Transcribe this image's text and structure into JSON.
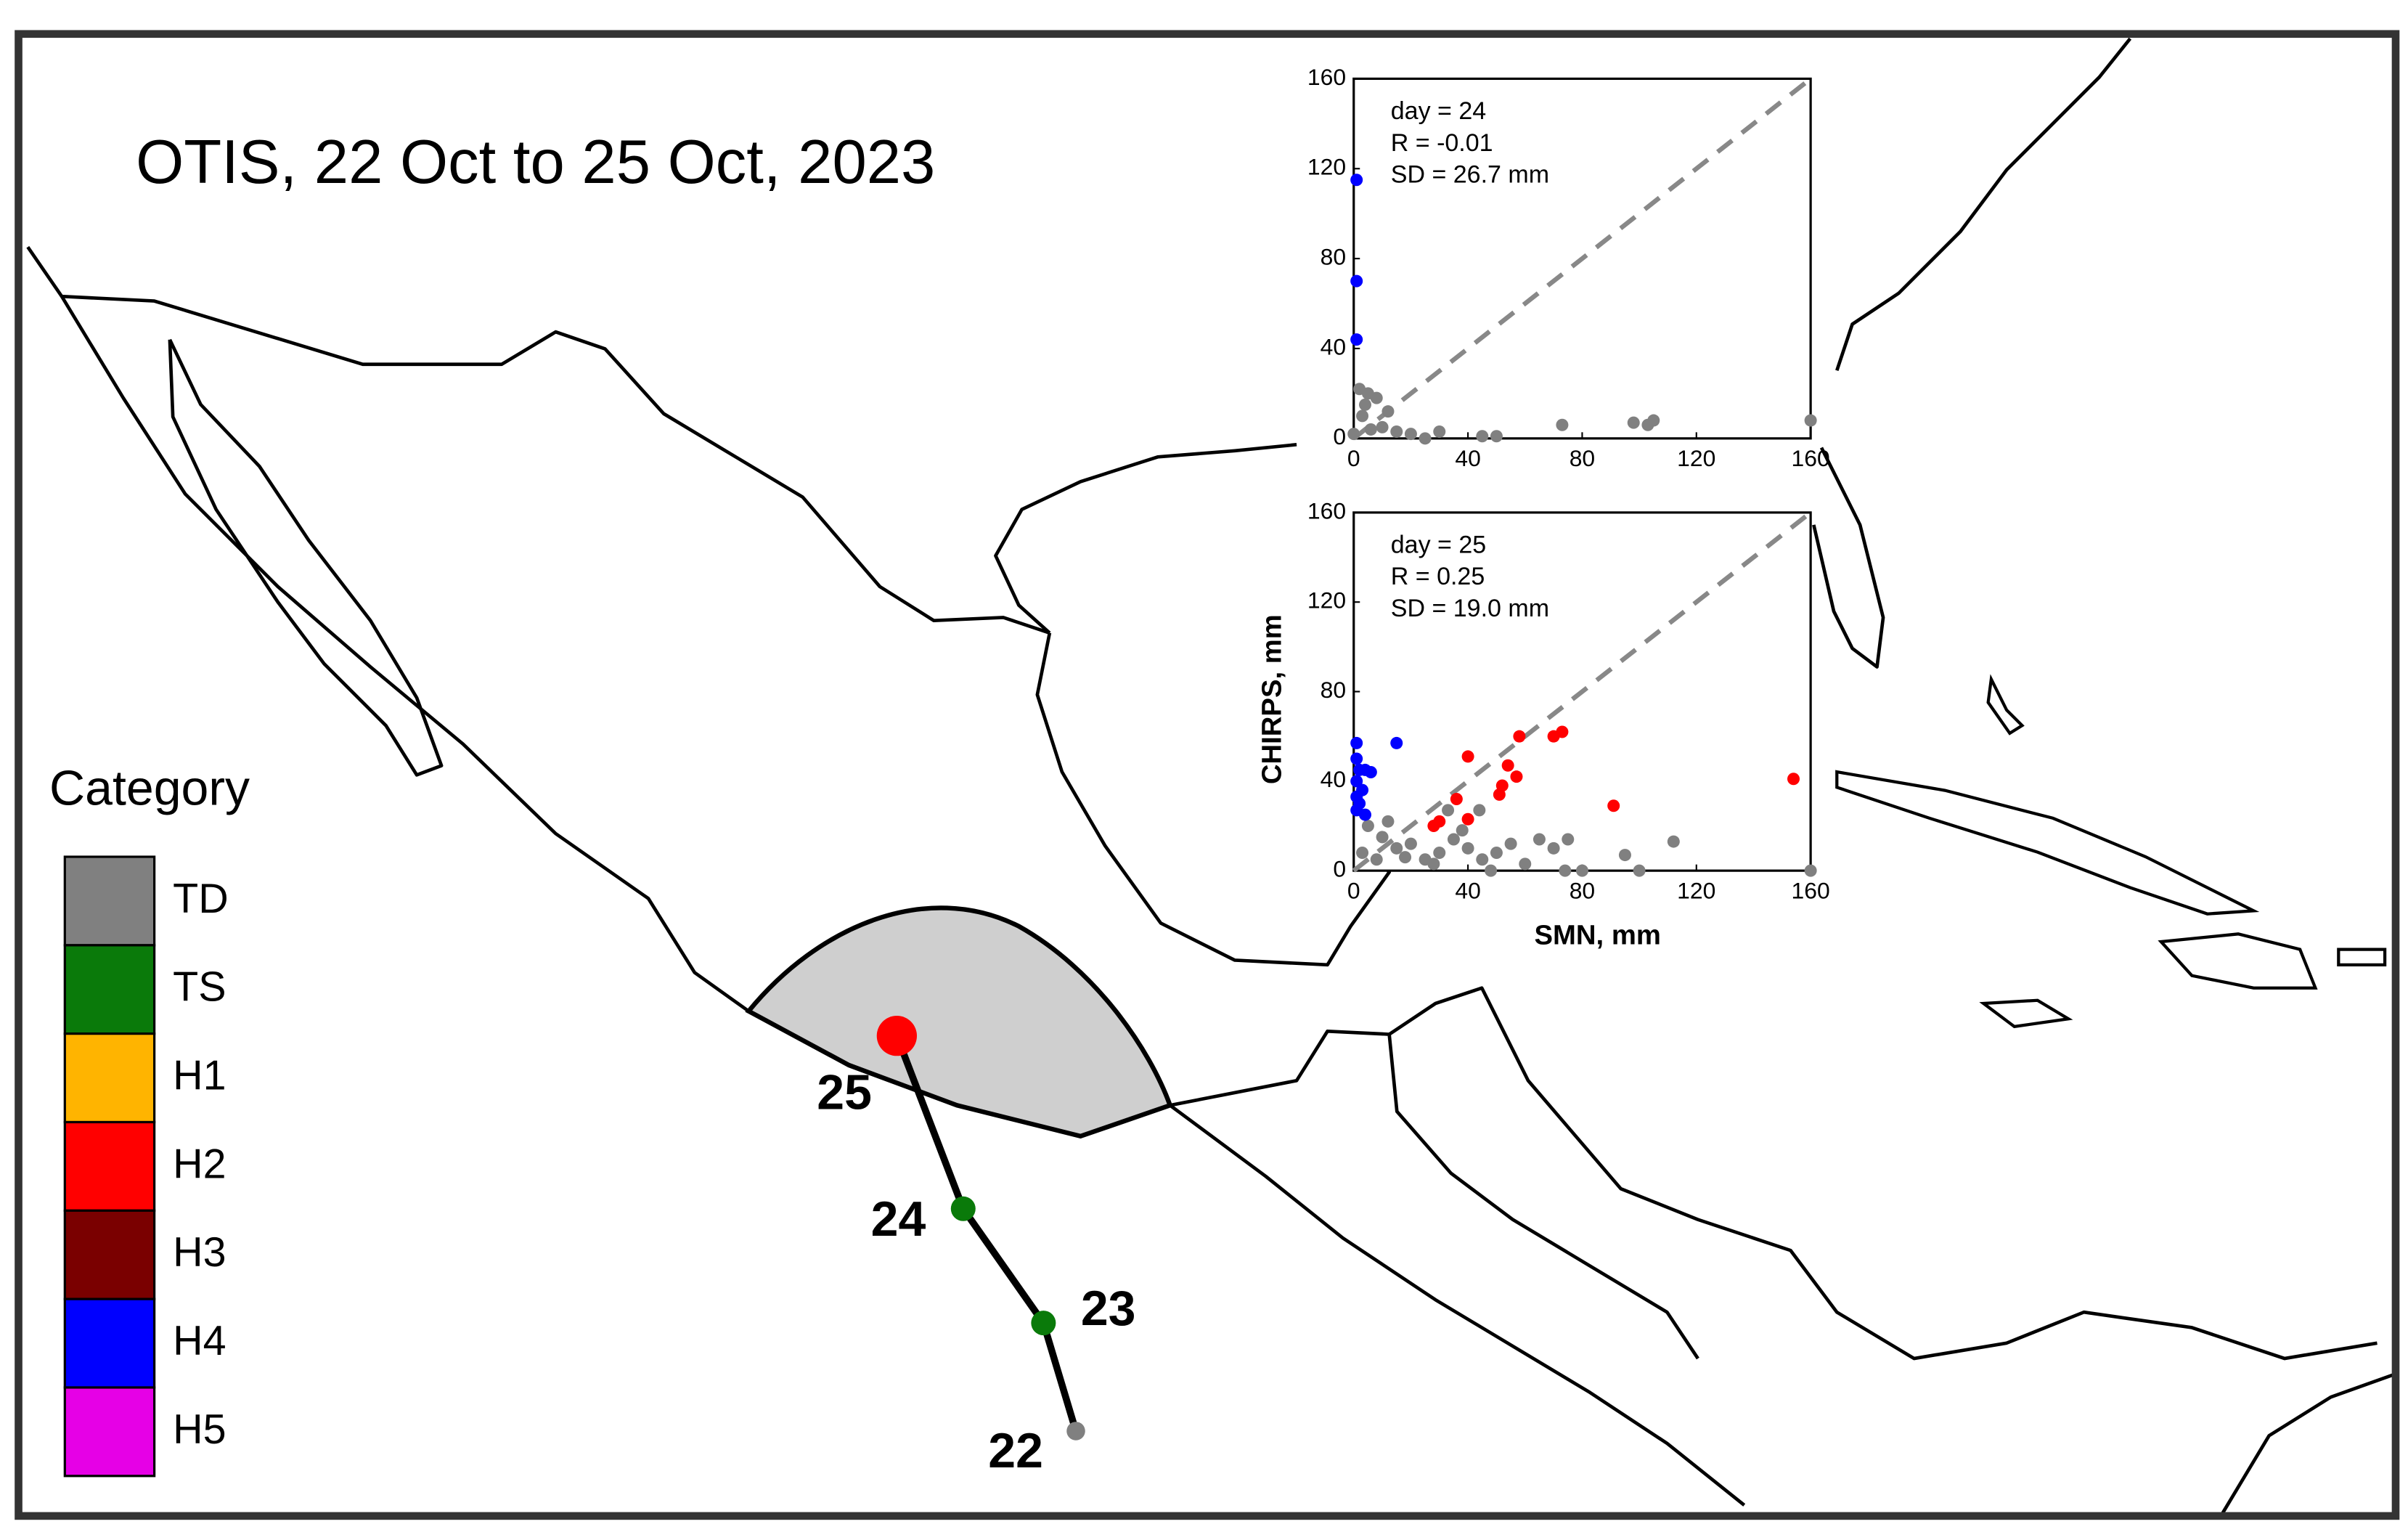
{
  "title": "OTIS, 22 Oct to 25 Oct, 2023",
  "legend": {
    "title": "Category",
    "items": [
      {
        "label": "TD",
        "color": "#808080"
      },
      {
        "label": "TS",
        "color": "#0a7a0a"
      },
      {
        "label": "H1",
        "color": "#ffb400"
      },
      {
        "label": "H2",
        "color": "#ff0000"
      },
      {
        "label": "H3",
        "color": "#7a0000"
      },
      {
        "label": "H4",
        "color": "#0000ff"
      },
      {
        "label": "H5",
        "color": "#e600e6"
      }
    ]
  },
  "track": {
    "points": [
      {
        "label": "22",
        "category": 0
      },
      {
        "label": "23",
        "category": 1
      },
      {
        "label": "24",
        "category": 1
      },
      {
        "label": "25",
        "category": 3
      }
    ]
  },
  "chart_data": [
    {
      "type": "scatter",
      "annotations": [
        "day = 24",
        "R = -0.01",
        "SD = 26.7 mm"
      ],
      "xlim": [
        0,
        160
      ],
      "ylim": [
        0,
        160
      ],
      "xticks": [
        0,
        40,
        80,
        120,
        160
      ],
      "yticks": [
        0,
        40,
        80,
        120,
        160
      ],
      "diagonal": true,
      "series": [
        {
          "color": "#808080",
          "x": [
            2,
            5,
            8,
            3,
            10,
            15,
            20,
            30,
            45,
            50,
            73,
            98,
            103,
            105,
            160,
            0,
            25,
            12,
            6,
            4
          ],
          "y": [
            22,
            20,
            18,
            10,
            5,
            3,
            2,
            3,
            1,
            1,
            6,
            7,
            6,
            8,
            8,
            2,
            0,
            12,
            4,
            15
          ]
        },
        {
          "color": "#0000ff",
          "x": [
            1,
            1,
            1
          ],
          "y": [
            115,
            70,
            44
          ]
        }
      ]
    },
    {
      "type": "scatter",
      "annotations": [
        "day = 25",
        "R = 0.25",
        "SD = 19.0 mm"
      ],
      "xlabel": "SMN, mm",
      "ylabel": "CHIRPS, mm",
      "xlim": [
        0,
        160
      ],
      "ylim": [
        0,
        160
      ],
      "xticks": [
        0,
        40,
        80,
        120,
        160
      ],
      "yticks": [
        0,
        40,
        80,
        120,
        160
      ],
      "diagonal": true,
      "series": [
        {
          "color": "#808080",
          "x": [
            5,
            10,
            15,
            20,
            25,
            30,
            35,
            40,
            45,
            50,
            55,
            60,
            65,
            70,
            75,
            80,
            95,
            100,
            112,
            8,
            3,
            44,
            33,
            160,
            74,
            48,
            12,
            18,
            28,
            38
          ],
          "y": [
            20,
            15,
            10,
            12,
            5,
            8,
            14,
            10,
            5,
            8,
            12,
            3,
            14,
            10,
            14,
            0,
            7,
            0,
            13,
            5,
            8,
            27,
            27,
            0,
            0,
            0,
            22,
            6,
            3,
            18
          ]
        },
        {
          "color": "#0000ff",
          "x": [
            1,
            1,
            2,
            4,
            1,
            3,
            1,
            2,
            1,
            4,
            15,
            6
          ],
          "y": [
            57,
            50,
            45,
            45,
            40,
            36,
            33,
            30,
            27,
            25,
            57,
            44
          ]
        },
        {
          "color": "#ff0000",
          "x": [
            40,
            54,
            52,
            57,
            58,
            70,
            73,
            36,
            40,
            30,
            28,
            91,
            154,
            51
          ],
          "y": [
            51,
            47,
            38,
            42,
            60,
            60,
            62,
            32,
            23,
            22,
            20,
            29,
            41,
            34
          ]
        }
      ]
    }
  ]
}
